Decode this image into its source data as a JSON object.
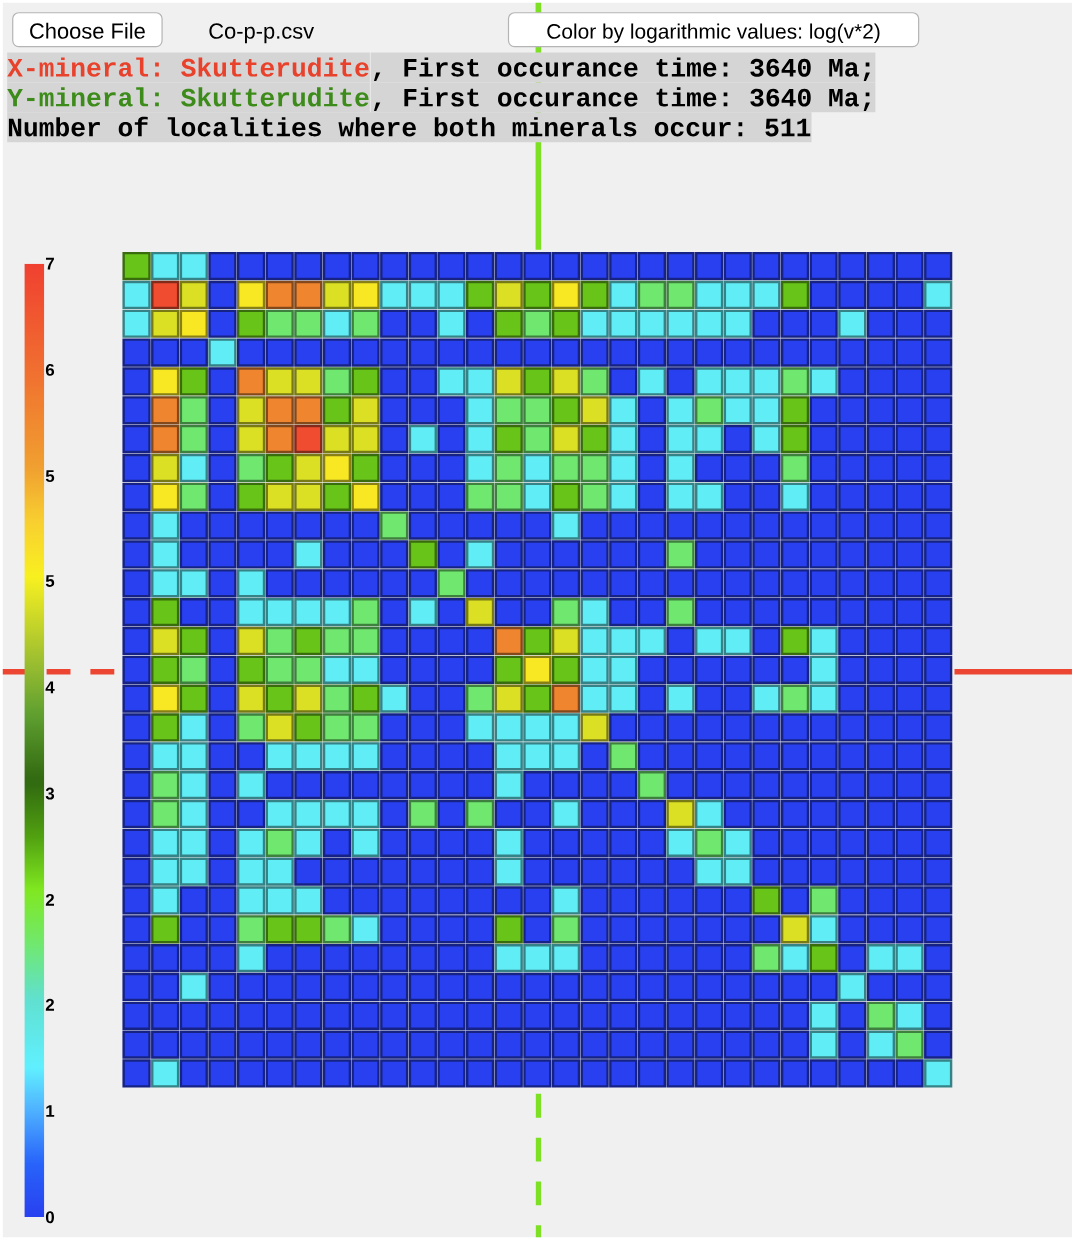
{
  "chart_data": {
    "type": "heatmap",
    "categories": [
      null,
      null,
      null,
      null,
      null,
      null,
      null,
      null,
      null,
      null,
      null,
      null,
      null,
      null,
      null,
      null,
      null,
      null,
      null,
      null,
      null,
      null,
      null,
      null,
      null,
      null,
      null,
      null,
      null
    ],
    "y_categories": [
      null,
      null,
      null,
      null,
      null,
      null,
      null,
      null,
      null,
      null,
      null,
      null,
      null,
      null,
      null,
      null,
      null,
      null,
      null,
      null,
      null,
      null,
      null,
      null,
      null,
      null,
      null,
      null,
      null
    ],
    "cells": [
      [
        2.6,
        1.2,
        1.2,
        0,
        0,
        0,
        0,
        0,
        0,
        0,
        0,
        0,
        0,
        0,
        0,
        0,
        0,
        0,
        0,
        0,
        0,
        0,
        0,
        0,
        0,
        0,
        0,
        0,
        0
      ],
      [
        1.2,
        6.8,
        4.5,
        0,
        4.8,
        5.9,
        5.9,
        4.5,
        4.8,
        1.2,
        1.2,
        1.2,
        2.6,
        4.5,
        2.6,
        4.8,
        2.6,
        1.2,
        2,
        2,
        1.2,
        1.2,
        1.2,
        2.6,
        0,
        0,
        0,
        0,
        1.2
      ],
      [
        1.2,
        4.5,
        4.8,
        0,
        2.6,
        2,
        2,
        1.2,
        2,
        0,
        0,
        1.2,
        0,
        2.6,
        2,
        2.6,
        1.2,
        1.2,
        1.2,
        1.2,
        1.2,
        1.2,
        0,
        0,
        0,
        1.2,
        0,
        0,
        0
      ],
      [
        0,
        0,
        0,
        1.2,
        0,
        0,
        0,
        0,
        0,
        0,
        0,
        0,
        0,
        0,
        0,
        0,
        0,
        0,
        0,
        0,
        0,
        0,
        0,
        0,
        0,
        0,
        0,
        0,
        0
      ],
      [
        0,
        4.8,
        2.6,
        0,
        5.9,
        4.5,
        4.5,
        2,
        2.6,
        0,
        0,
        1.2,
        1.2,
        4.5,
        2.6,
        4.5,
        2,
        0,
        1.2,
        0,
        1.2,
        1.2,
        1.2,
        2,
        1.2,
        0,
        0,
        0,
        0
      ],
      [
        0,
        5.9,
        2,
        0,
        4.5,
        5.9,
        5.9,
        2.6,
        4.5,
        0,
        0,
        0,
        1.2,
        2,
        2,
        2.6,
        4.5,
        1.2,
        0,
        1.2,
        2,
        1.2,
        1.2,
        2.6,
        0,
        0,
        0,
        0,
        0
      ],
      [
        0,
        5.9,
        2,
        0,
        4.5,
        5.9,
        6.8,
        4.5,
        4.5,
        0,
        1.2,
        0,
        1.2,
        2.6,
        2,
        4.5,
        2.6,
        1.2,
        0,
        1.2,
        1.2,
        0,
        1.2,
        2.6,
        0,
        0,
        0,
        0,
        0
      ],
      [
        0,
        4.5,
        1.2,
        0,
        2,
        2.6,
        4.5,
        4.8,
        2.6,
        0,
        0,
        0,
        1.2,
        2,
        1.2,
        2,
        2,
        1.2,
        0,
        1.2,
        0,
        0,
        0,
        2,
        0,
        0,
        0,
        0,
        0
      ],
      [
        0,
        4.8,
        2,
        0,
        2.6,
        4.5,
        4.5,
        2.6,
        4.8,
        0,
        0,
        0,
        2,
        2,
        1.2,
        2.6,
        2,
        1.2,
        0,
        1.2,
        1.2,
        0,
        0,
        1.2,
        0,
        0,
        0,
        0,
        0
      ],
      [
        0,
        1.2,
        0,
        0,
        0,
        0,
        0,
        0,
        0,
        2,
        0,
        0,
        0,
        0,
        0,
        1.2,
        0,
        0,
        0,
        0,
        0,
        0,
        0,
        0,
        0,
        0,
        0,
        0,
        0
      ],
      [
        0,
        1.2,
        0,
        0,
        0,
        0,
        1.2,
        0,
        0,
        0,
        2.6,
        0,
        1.2,
        0,
        0,
        0,
        0,
        0,
        0,
        2,
        0,
        0,
        0,
        0,
        0,
        0,
        0,
        0,
        0
      ],
      [
        0,
        1.2,
        1.2,
        0,
        1.2,
        0,
        0,
        0,
        0,
        0,
        0,
        2,
        0,
        0,
        0,
        0,
        0,
        0,
        0,
        0,
        0,
        0,
        0,
        0,
        0,
        0,
        0,
        0,
        0
      ],
      [
        0,
        2.6,
        0,
        0,
        1.2,
        1.2,
        1.2,
        1.2,
        2,
        0,
        1.2,
        0,
        4.5,
        0,
        0,
        2,
        1.2,
        0,
        0,
        2,
        0,
        0,
        0,
        0,
        0,
        0,
        0,
        0,
        0
      ],
      [
        0,
        4.5,
        2.6,
        0,
        4.5,
        2,
        2.6,
        2,
        2,
        0,
        0,
        0,
        0,
        5.9,
        2.6,
        4.5,
        1.2,
        1.2,
        1.2,
        0,
        1.2,
        1.2,
        0,
        2.6,
        1.2,
        0,
        0,
        0,
        0
      ],
      [
        0,
        2.6,
        2,
        0,
        2.6,
        2,
        2,
        1.2,
        1.2,
        0,
        0,
        0,
        0,
        2.6,
        4.8,
        2.6,
        1.2,
        1.2,
        0,
        0,
        0,
        0,
        0,
        0,
        1.2,
        0,
        0,
        0,
        0
      ],
      [
        0,
        4.8,
        2.6,
        0,
        4.5,
        2.6,
        4.5,
        2,
        2.6,
        1.2,
        0,
        0,
        2,
        4.5,
        2.6,
        5.9,
        1.2,
        1.2,
        0,
        1.2,
        0,
        0,
        1.2,
        2,
        1.2,
        0,
        0,
        0,
        0
      ],
      [
        0,
        2.6,
        1.2,
        0,
        2,
        4.5,
        2.6,
        2,
        2,
        0,
        0,
        0,
        1.2,
        1.2,
        1.2,
        1.2,
        4.5,
        0,
        0,
        0,
        0,
        0,
        0,
        0,
        0,
        0,
        0,
        0,
        0
      ],
      [
        0,
        1.2,
        1.2,
        0,
        0,
        1.2,
        1.2,
        1.2,
        1.2,
        0,
        0,
        0,
        0,
        1.2,
        1.2,
        1.2,
        0,
        2,
        0,
        0,
        0,
        0,
        0,
        0,
        0,
        0,
        0,
        0,
        0
      ],
      [
        0,
        2,
        1.2,
        0,
        1.2,
        0,
        0,
        0,
        0,
        0,
        0,
        0,
        0,
        1.2,
        0,
        0,
        0,
        0,
        2,
        0,
        0,
        0,
        0,
        0,
        0,
        0,
        0,
        0,
        0
      ],
      [
        0,
        2,
        1.2,
        0,
        0,
        1.2,
        1.2,
        1.2,
        1.2,
        0,
        2,
        0,
        2,
        0,
        0,
        1.2,
        0,
        0,
        0,
        4.5,
        1.2,
        0,
        0,
        0,
        0,
        0,
        0,
        0,
        0
      ],
      [
        0,
        1.2,
        1.2,
        0,
        1.2,
        2,
        1.2,
        0,
        1.2,
        0,
        0,
        0,
        0,
        1.2,
        0,
        0,
        0,
        0,
        0,
        1.2,
        2,
        1.2,
        0,
        0,
        0,
        0,
        0,
        0,
        0
      ],
      [
        0,
        1.2,
        1.2,
        0,
        1.2,
        1.2,
        0,
        0,
        0,
        0,
        0,
        0,
        0,
        1.2,
        0,
        0,
        0,
        0,
        0,
        0,
        1.2,
        1.2,
        0,
        0,
        0,
        0,
        0,
        0,
        0
      ],
      [
        0,
        1.2,
        0,
        0,
        1.2,
        1.2,
        1.2,
        0,
        0,
        0,
        0,
        0,
        0,
        0,
        0,
        1.2,
        0,
        0,
        0,
        0,
        0,
        0,
        2.6,
        0,
        2,
        0,
        0,
        0,
        0
      ],
      [
        0,
        2.6,
        0,
        0,
        2,
        2.6,
        2.6,
        2,
        1.2,
        0,
        0,
        0,
        0,
        2.6,
        0,
        2,
        0,
        0,
        0,
        0,
        0,
        0,
        0,
        4.5,
        1.2,
        0,
        0,
        0,
        0
      ],
      [
        0,
        0,
        0,
        0,
        1.2,
        0,
        0,
        0,
        0,
        0,
        0,
        0,
        0,
        1.2,
        1.2,
        1.2,
        0,
        0,
        0,
        0,
        0,
        0,
        2,
        1.2,
        2.6,
        0,
        1.2,
        1.2,
        0
      ],
      [
        0,
        0,
        1.2,
        0,
        0,
        0,
        0,
        0,
        0,
        0,
        0,
        0,
        0,
        0,
        0,
        0,
        0,
        0,
        0,
        0,
        0,
        0,
        0,
        0,
        0,
        1.2,
        0,
        0,
        0
      ],
      [
        0,
        0,
        0,
        0,
        0,
        0,
        0,
        0,
        0,
        0,
        0,
        0,
        0,
        0,
        0,
        0,
        0,
        0,
        0,
        0,
        0,
        0,
        0,
        0,
        1.2,
        0,
        2,
        1.2,
        0
      ],
      [
        0,
        0,
        0,
        0,
        0,
        0,
        0,
        0,
        0,
        0,
        0,
        0,
        0,
        0,
        0,
        0,
        0,
        0,
        0,
        0,
        0,
        0,
        0,
        0,
        1.2,
        0,
        1.2,
        2,
        0
      ],
      [
        0,
        1.2,
        0,
        0,
        0,
        0,
        0,
        0,
        0,
        0,
        0,
        0,
        0,
        0,
        0,
        0,
        0,
        0,
        0,
        0,
        0,
        0,
        0,
        0,
        0,
        0,
        0,
        0,
        1.2
      ]
    ],
    "clim": [
      0,
      7
    ],
    "cticks": [
      0,
      {
        "value": 0.78,
        "label": "1"
      },
      {
        "value": 1.56,
        "label": "2"
      },
      {
        "value": 2.33,
        "label": "2"
      },
      {
        "value": 3.11,
        "label": "3"
      },
      {
        "value": 3.89,
        "label": "4"
      },
      {
        "value": 4.67,
        "label": "5"
      },
      {
        "value": 5.44,
        "label": "5"
      },
      {
        "value": 6.22,
        "label": "6"
      },
      7
    ],
    "annotations": [
      "Choose File",
      "Co-p-p.csv",
      "Color by logarithmic values: log(v*2)",
      "X-mineral: Skutterudite",
      ", First occurance time: 3640 Ma;",
      "Y-mineral: Skutterudite",
      ", First occurance time: 3640 Ma;",
      "Number of localities where both minerals occur: 511"
    ]
  }
}
